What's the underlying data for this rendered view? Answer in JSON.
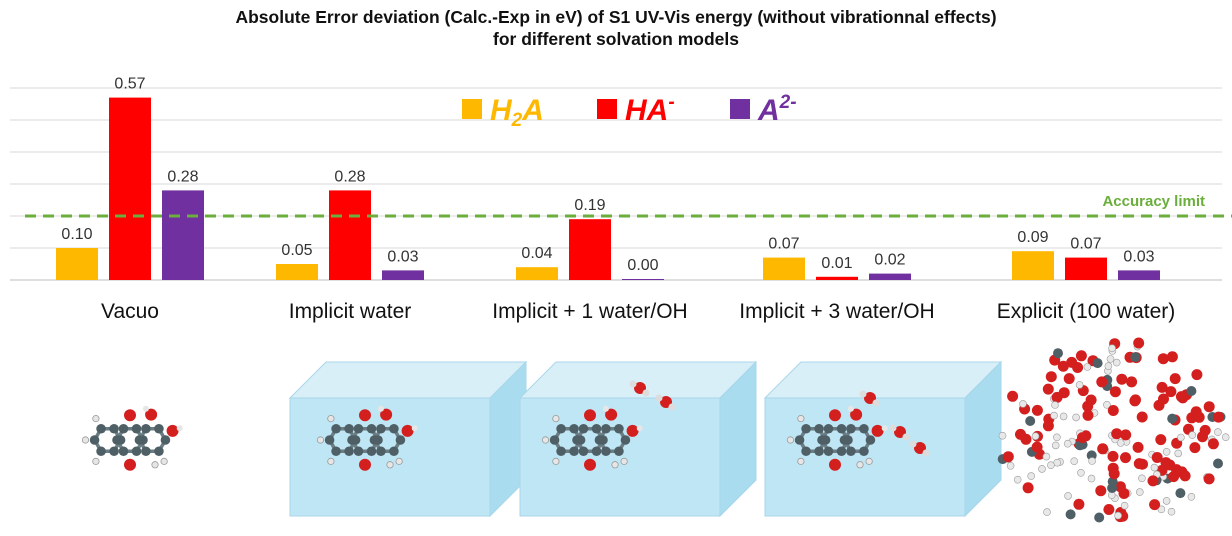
{
  "chart_data": {
    "type": "bar",
    "title_line1": "Absolute Error deviation (Calc.-Exp in eV) of S1 UV-Vis energy (without vibrationnal effects)",
    "title_line2": "for different solvation models",
    "xlabel": "",
    "ylabel": "",
    "ylim": [
      0,
      0.6
    ],
    "grid": true,
    "categories": [
      "Vacuo",
      "Implicit water",
      "Implicit + 1 water/OH",
      "Implicit + 3 water/OH",
      "Explicit (100 water)"
    ],
    "series": [
      {
        "name": "H",
        "sub": "2",
        "tail": "A",
        "color": "#FFB800",
        "values": [
          0.1,
          0.05,
          0.04,
          0.07,
          0.09
        ],
        "labels": [
          "0.10",
          "0.05",
          "0.04",
          "0.07",
          "0.09"
        ]
      },
      {
        "name": "HA",
        "sup": "-",
        "color": "#FF0000",
        "values": [
          0.57,
          0.28,
          0.19,
          0.01,
          0.07
        ],
        "labels": [
          "0.57",
          "0.28",
          "0.19",
          "0.01",
          "0.07"
        ]
      },
      {
        "name": "A",
        "sup": "2-",
        "color": "#7030A0",
        "values": [
          0.28,
          0.03,
          0.0,
          0.02,
          0.03
        ],
        "labels": [
          "0.28",
          "0.03",
          "0.00",
          "0.02",
          "0.03"
        ]
      }
    ],
    "accuracy_limit": {
      "value": 0.2,
      "label": "Accuracy limit",
      "color": "#6aae3c"
    },
    "legend_position": "top-center"
  },
  "images": [
    {
      "name": "molecule-vacuo",
      "box": false
    },
    {
      "name": "molecule-implicit-water",
      "box": true
    },
    {
      "name": "molecule-implicit-1-water",
      "box": true
    },
    {
      "name": "molecule-implicit-3-water",
      "box": true
    },
    {
      "name": "molecule-explicit-100-water",
      "box": false
    }
  ]
}
